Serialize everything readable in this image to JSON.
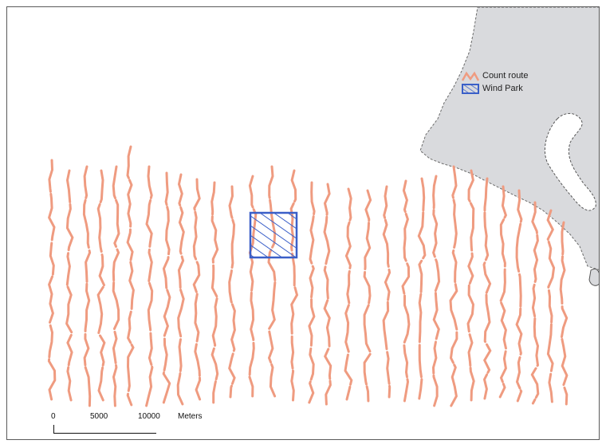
{
  "legend": {
    "items": [
      {
        "label": "Count route",
        "color": "#e8967a"
      },
      {
        "label": "Wind Park",
        "color": "#3a5fc8"
      }
    ]
  },
  "scale": {
    "labels": [
      "0",
      "5000",
      "10000",
      "Meters"
    ]
  },
  "colors": {
    "land": "#d9dadd",
    "coast": "#6a6a6a",
    "route": "#ef9b80",
    "windpark": "#3a5fc8"
  }
}
